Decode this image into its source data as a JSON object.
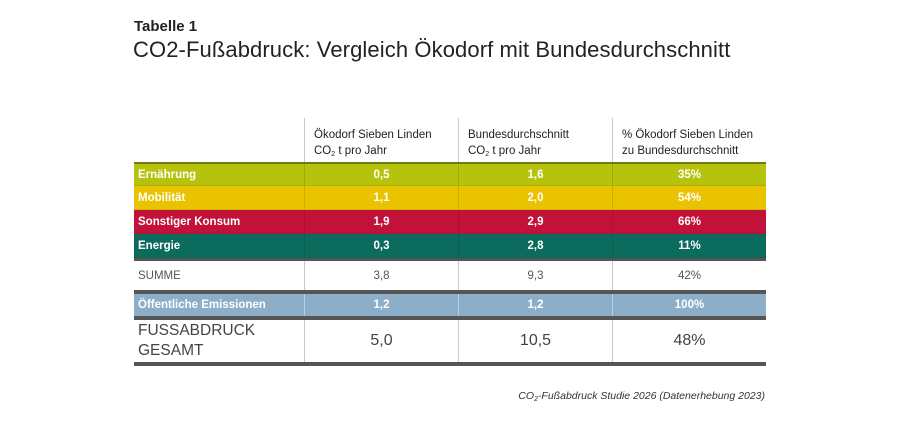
{
  "header": {
    "table_label": "Tabelle 1",
    "title": "CO2-Fußabdruck: Vergleich Ökodorf mit Bundesdurchschnitt"
  },
  "table": {
    "columns": [
      {
        "line1": "",
        "line2": ""
      },
      {
        "line1": "Ökodorf Sieben Linden",
        "line2_pre": "CO",
        "line2_sub": "2",
        "line2_post": " t pro Jahr"
      },
      {
        "line1": "Bundesdurchschnitt",
        "line2_pre": "CO",
        "line2_sub": "2",
        "line2_post": " t pro Jahr"
      },
      {
        "line1": "% Ökodorf Sieben Linden",
        "line2": "zu Bundesdurchschnitt"
      }
    ],
    "rows": [
      {
        "label": "Ernährung",
        "oekodorf": "0,5",
        "bund": "1,6",
        "percent": "35%",
        "color": "#b5c30d"
      },
      {
        "label": "Mobilität",
        "oekodorf": "1,1",
        "bund": "2,0",
        "percent": "54%",
        "color": "#e9c200"
      },
      {
        "label": "Sonstiger Konsum",
        "oekodorf": "1,9",
        "bund": "2,9",
        "percent": "66%",
        "color": "#c3123a"
      },
      {
        "label": "Energie",
        "oekodorf": "0,3",
        "bund": "2,8",
        "percent": "11%",
        "color": "#0b6b5d"
      }
    ],
    "summe": {
      "label": "SUMME",
      "oekodorf": "3,8",
      "bund": "9,3",
      "percent": "42%"
    },
    "public": {
      "label": "Öffentliche Emissionen",
      "oekodorf": "1,2",
      "bund": "1,2",
      "percent": "100%",
      "color": "#8caec9"
    },
    "total": {
      "label_line1": "FUSSABDRUCK",
      "label_line2": "GESAMT",
      "oekodorf": "5,0",
      "bund": "10,5",
      "percent": "48%"
    }
  },
  "source": {
    "pre": "CO",
    "sub": "2",
    "post": "-Fußabdruck Studie 2026 (Datenerhebung 2023)"
  }
}
